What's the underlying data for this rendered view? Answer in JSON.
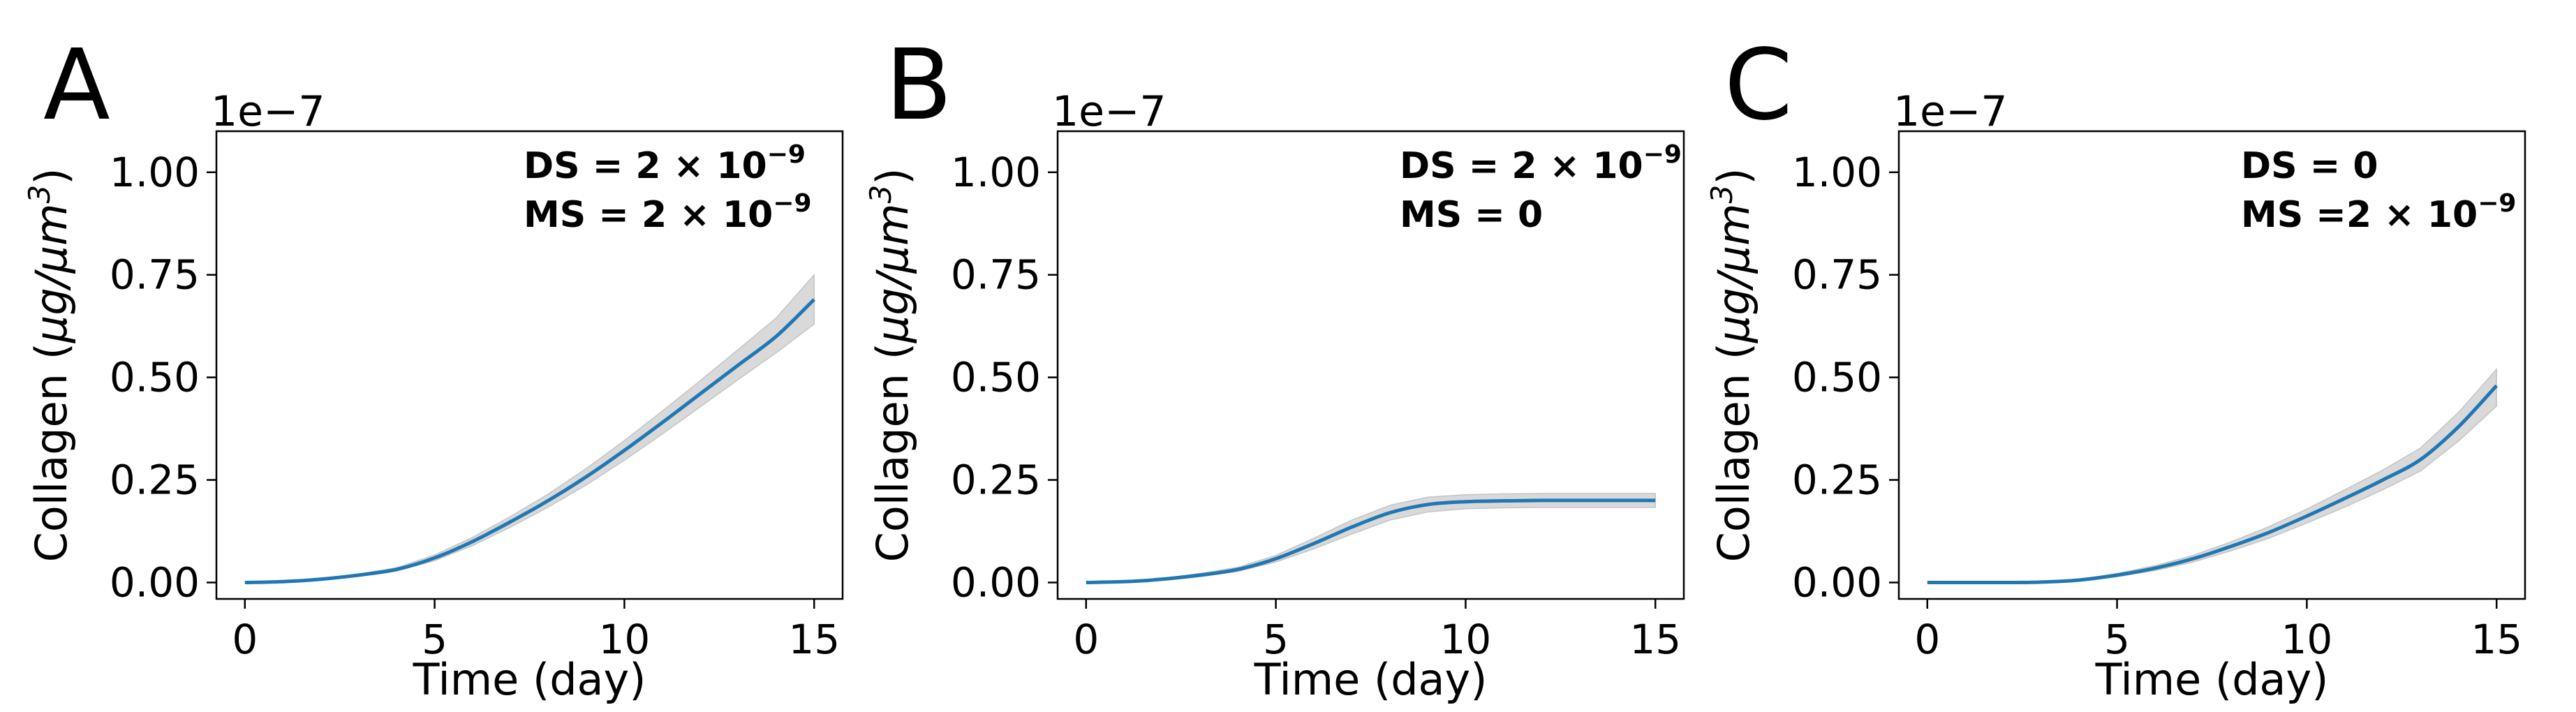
{
  "chart_data": [
    {
      "type": "line",
      "panel_label": "A",
      "xlabel": "Time (day)",
      "ylabel_text": "Collagen (",
      "ylabel_math": "μg/μm",
      "ylabel_sup": "3",
      "ylabel_close": ")",
      "offset_label": "1e−7",
      "xlim": [
        -0.75,
        15.75
      ],
      "ylim": [
        -0.04,
        1.1
      ],
      "xticks": [
        0,
        5,
        10,
        15
      ],
      "xtick_labels": [
        "0",
        "5",
        "10",
        "15"
      ],
      "yticks": [
        0.0,
        0.25,
        0.5,
        0.75,
        1.0
      ],
      "ytick_labels": [
        "0.00",
        "0.25",
        "0.50",
        "0.75",
        "1.00"
      ],
      "annotations": [
        {
          "lead": "DS = 2 × 10",
          "sup": "−9"
        },
        {
          "lead": "MS = 2 × 10",
          "sup": "−9"
        }
      ],
      "series": [
        {
          "color": "#1f77b4",
          "band_color": "#d9d9d9",
          "x": [
            0,
            1,
            2,
            3,
            4,
            5,
            6,
            7,
            8,
            9,
            10,
            11,
            12,
            13,
            14,
            15
          ],
          "y": [
            0.0,
            0.002,
            0.008,
            0.018,
            0.032,
            0.06,
            0.1,
            0.148,
            0.2,
            0.258,
            0.322,
            0.39,
            0.46,
            0.53,
            0.6,
            0.69
          ],
          "lower": [
            0.0,
            0.001,
            0.006,
            0.015,
            0.028,
            0.053,
            0.09,
            0.135,
            0.184,
            0.238,
            0.298,
            0.362,
            0.428,
            0.495,
            0.56,
            0.63
          ],
          "upper": [
            0.0,
            0.003,
            0.01,
            0.021,
            0.036,
            0.067,
            0.11,
            0.161,
            0.216,
            0.278,
            0.346,
            0.418,
            0.492,
            0.568,
            0.645,
            0.75
          ]
        }
      ]
    },
    {
      "type": "line",
      "panel_label": "B",
      "xlabel": "Time (day)",
      "ylabel_text": "Collagen (",
      "ylabel_math": "μg/μm",
      "ylabel_sup": "3",
      "ylabel_close": ")",
      "offset_label": "1e−7",
      "xlim": [
        -0.75,
        15.75
      ],
      "ylim": [
        -0.04,
        1.1
      ],
      "xticks": [
        0,
        5,
        10,
        15
      ],
      "xtick_labels": [
        "0",
        "5",
        "10",
        "15"
      ],
      "yticks": [
        0.0,
        0.25,
        0.5,
        0.75,
        1.0
      ],
      "ytick_labels": [
        "0.00",
        "0.25",
        "0.50",
        "0.75",
        "1.00"
      ],
      "annotations": [
        {
          "lead": "DS = 2 × 10",
          "sup": "−9"
        },
        {
          "lead": "MS = 0",
          "sup": ""
        }
      ],
      "series": [
        {
          "color": "#1f77b4",
          "band_color": "#d9d9d9",
          "x": [
            0,
            1,
            2,
            3,
            4,
            5,
            6,
            7,
            8,
            9,
            10,
            11,
            12,
            13,
            14,
            15
          ],
          "y": [
            0.0,
            0.002,
            0.008,
            0.018,
            0.032,
            0.058,
            0.095,
            0.135,
            0.17,
            0.19,
            0.197,
            0.199,
            0.2,
            0.2,
            0.2,
            0.2
          ],
          "lower": [
            0.0,
            0.001,
            0.006,
            0.014,
            0.027,
            0.05,
            0.082,
            0.118,
            0.152,
            0.172,
            0.18,
            0.182,
            0.183,
            0.183,
            0.183,
            0.183
          ],
          "upper": [
            0.0,
            0.003,
            0.01,
            0.022,
            0.037,
            0.066,
            0.108,
            0.152,
            0.188,
            0.208,
            0.214,
            0.216,
            0.217,
            0.217,
            0.217,
            0.217
          ]
        }
      ]
    },
    {
      "type": "line",
      "panel_label": "C",
      "xlabel": "Time (day)",
      "ylabel_text": "Collagen (",
      "ylabel_math": "μg/μm",
      "ylabel_sup": "3",
      "ylabel_close": ")",
      "offset_label": "1e−7",
      "xlim": [
        -0.75,
        15.75
      ],
      "ylim": [
        -0.04,
        1.1
      ],
      "xticks": [
        0,
        5,
        10,
        15
      ],
      "xtick_labels": [
        "0",
        "5",
        "10",
        "15"
      ],
      "yticks": [
        0.0,
        0.25,
        0.5,
        0.75,
        1.0
      ],
      "ytick_labels": [
        "0.00",
        "0.25",
        "0.50",
        "0.75",
        "1.00"
      ],
      "annotations": [
        {
          "lead": "DS = 0",
          "sup": ""
        },
        {
          "lead": "MS =2 × 10",
          "sup": "−9"
        }
      ],
      "series": [
        {
          "color": "#1f77b4",
          "band_color": "#d9d9d9",
          "x": [
            0,
            1,
            2,
            3,
            4,
            5,
            6,
            7,
            8,
            9,
            10,
            11,
            12,
            13,
            14,
            15
          ],
          "y": [
            0.0,
            0.0,
            0.0,
            0.001,
            0.006,
            0.018,
            0.035,
            0.058,
            0.088,
            0.122,
            0.162,
            0.205,
            0.25,
            0.3,
            0.38,
            0.48
          ],
          "lower": [
            0.0,
            0.0,
            0.0,
            0.0,
            0.004,
            0.014,
            0.029,
            0.05,
            0.077,
            0.108,
            0.145,
            0.184,
            0.226,
            0.272,
            0.345,
            0.43
          ],
          "upper": [
            0.0,
            0.0,
            0.0,
            0.002,
            0.008,
            0.022,
            0.041,
            0.066,
            0.099,
            0.136,
            0.179,
            0.226,
            0.274,
            0.328,
            0.415,
            0.52
          ]
        }
      ]
    }
  ]
}
